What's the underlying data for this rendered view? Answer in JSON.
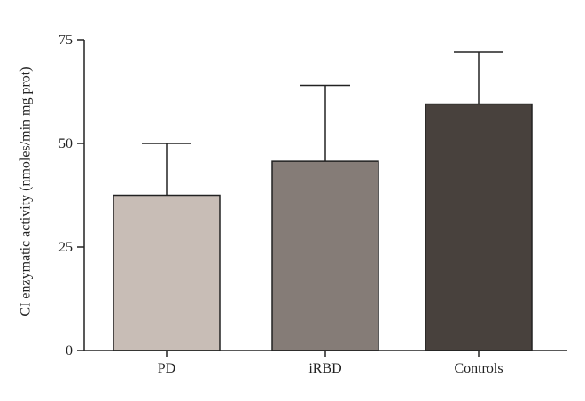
{
  "chart_data": {
    "type": "bar",
    "title": "",
    "xlabel": "",
    "ylabel": "CI enzymatic activity (nmoles/min mg prot)",
    "categories": [
      "PD",
      "iRBD",
      "Controls"
    ],
    "values": [
      37.5,
      45.7,
      59.5
    ],
    "error_upper": [
      50,
      64,
      72
    ],
    "ylim": [
      0,
      75
    ],
    "yticks": [
      "0",
      "25",
      "50",
      "75"
    ],
    "bar_colors": [
      "#c8bdb6",
      "#857c77",
      "#48413d"
    ],
    "grid": false,
    "legend": "none"
  }
}
